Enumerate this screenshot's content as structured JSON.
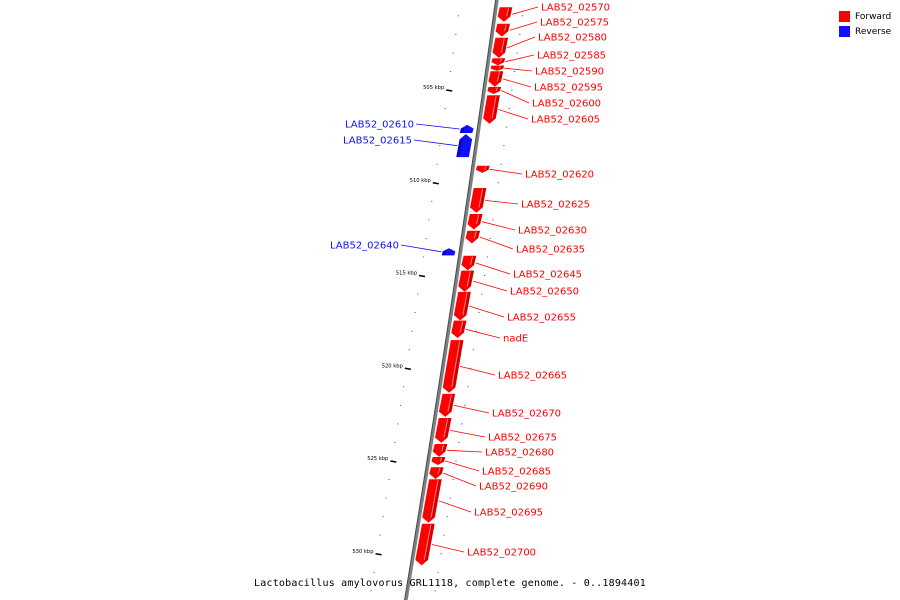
{
  "title": "Lactobacillus amylovorus GRL1118, complete genome. - 0..1894401",
  "legend": [
    {
      "label": "Forward",
      "color": "#ff0000"
    },
    {
      "label": "Reverse",
      "color": "#1010ff"
    }
  ],
  "colors": {
    "forward": "#ff0000",
    "forward_dark": "#b00000",
    "reverse": "#1010ff",
    "reverse_dark": "#0000a0",
    "backbone": "#808080"
  },
  "scale": [
    {
      "kbp": 505,
      "label": "505 kbp"
    },
    {
      "kbp": 510,
      "label": "510 kbp"
    },
    {
      "kbp": 515,
      "label": "515 kbp"
    },
    {
      "kbp": 520,
      "label": "520 kbp"
    },
    {
      "kbp": 525,
      "label": "525 kbp"
    },
    {
      "kbp": 530,
      "label": "530 kbp"
    }
  ],
  "genes": [
    {
      "name": "LAB52_02570",
      "strand": "forward",
      "start_kbp": 500.55,
      "end_kbp": 501.3
    },
    {
      "name": "LAB52_02575",
      "strand": "forward",
      "start_kbp": 501.45,
      "end_kbp": 502.1
    },
    {
      "name": "LAB52_02580",
      "strand": "forward",
      "start_kbp": 502.2,
      "end_kbp": 503.25
    },
    {
      "name": "LAB52_02585",
      "strand": "forward",
      "start_kbp": 503.3,
      "end_kbp": 503.65
    },
    {
      "name": "LAB52_02590",
      "strand": "forward",
      "start_kbp": 503.7,
      "end_kbp": 503.95
    },
    {
      "name": "LAB52_02595",
      "strand": "forward",
      "start_kbp": 504.0,
      "end_kbp": 504.8
    },
    {
      "name": "LAB52_02600",
      "strand": "forward",
      "start_kbp": 504.85,
      "end_kbp": 505.2
    },
    {
      "name": "LAB52_02605",
      "strand": "forward",
      "start_kbp": 505.3,
      "end_kbp": 506.8
    },
    {
      "name": "LAB52_02610",
      "strand": "reverse",
      "start_kbp": 506.9,
      "end_kbp": 507.3
    },
    {
      "name": "LAB52_02615",
      "strand": "reverse",
      "start_kbp": 507.4,
      "end_kbp": 508.6
    },
    {
      "name": "LAB52_02620",
      "strand": "forward",
      "start_kbp": 509.1,
      "end_kbp": 509.45
    },
    {
      "name": "LAB52_02625",
      "strand": "forward",
      "start_kbp": 510.3,
      "end_kbp": 511.6
    },
    {
      "name": "LAB52_02630",
      "strand": "forward",
      "start_kbp": 511.7,
      "end_kbp": 512.5
    },
    {
      "name": "LAB52_02635",
      "strand": "forward",
      "start_kbp": 512.6,
      "end_kbp": 513.25
    },
    {
      "name": "LAB52_02640",
      "strand": "reverse",
      "start_kbp": 513.55,
      "end_kbp": 513.9
    },
    {
      "name": "LAB52_02645",
      "strand": "forward",
      "start_kbp": 513.95,
      "end_kbp": 514.7
    },
    {
      "name": "LAB52_02650",
      "strand": "forward",
      "start_kbp": 514.75,
      "end_kbp": 515.85
    },
    {
      "name": "LAB52_02655",
      "strand": "forward",
      "start_kbp": 515.9,
      "end_kbp": 517.4
    },
    {
      "name": "nadE",
      "strand": "forward",
      "start_kbp": 517.45,
      "end_kbp": 518.35
    },
    {
      "name": "LAB52_02665",
      "strand": "forward",
      "start_kbp": 518.5,
      "end_kbp": 521.3
    },
    {
      "name": "LAB52_02670",
      "strand": "forward",
      "start_kbp": 521.4,
      "end_kbp": 522.6
    },
    {
      "name": "LAB52_02675",
      "strand": "forward",
      "start_kbp": 522.7,
      "end_kbp": 524.0
    },
    {
      "name": "LAB52_02680",
      "strand": "forward",
      "start_kbp": 524.1,
      "end_kbp": 524.75
    },
    {
      "name": "LAB52_02685",
      "strand": "forward",
      "start_kbp": 524.8,
      "end_kbp": 525.2
    },
    {
      "name": "LAB52_02690",
      "strand": "forward",
      "start_kbp": 525.35,
      "end_kbp": 525.95
    },
    {
      "name": "LAB52_02695",
      "strand": "forward",
      "start_kbp": 526.0,
      "end_kbp": 528.3
    },
    {
      "name": "LAB52_02700",
      "strand": "forward",
      "start_kbp": 528.4,
      "end_kbp": 530.6
    }
  ]
}
